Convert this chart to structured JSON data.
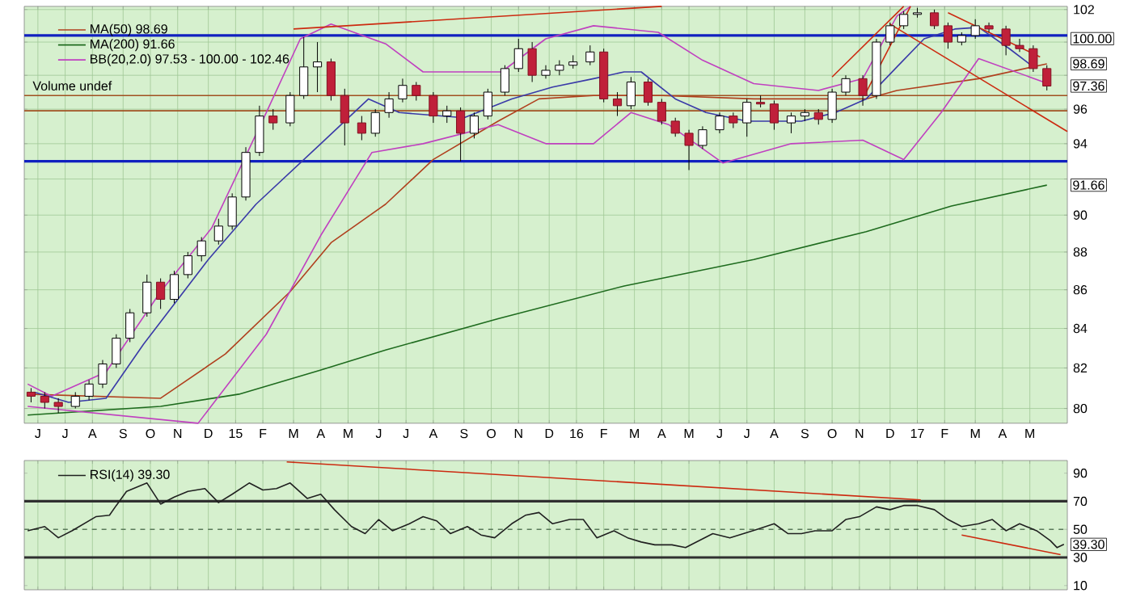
{
  "chart_data": [
    {
      "type": "candlestick",
      "log": "y",
      "grid": true,
      "legend": "top left",
      "marker": "none",
      "xlim": [
        2014.38,
        2017.44
      ],
      "ylim": [
        79.3,
        102.2
      ],
      "xticks": [
        {
          "value": 2014.42,
          "label": "J"
        },
        {
          "value": 2014.5,
          "label": "J"
        },
        {
          "value": 2014.58,
          "label": "A"
        },
        {
          "value": 2014.67,
          "label": "S"
        },
        {
          "value": 2014.75,
          "label": "O"
        },
        {
          "value": 2014.83,
          "label": "N"
        },
        {
          "value": 2014.92,
          "label": "D"
        },
        {
          "value": 2015,
          "label": "15"
        },
        {
          "value": 2015.08,
          "label": "F"
        },
        {
          "value": 2015.17,
          "label": "M"
        },
        {
          "value": 2015.25,
          "label": "A"
        },
        {
          "value": 2015.33,
          "label": "M"
        },
        {
          "value": 2015.42,
          "label": "J"
        },
        {
          "value": 2015.5,
          "label": "J"
        },
        {
          "value": 2015.58,
          "label": "A"
        },
        {
          "value": 2015.67,
          "label": "S"
        },
        {
          "value": 2015.75,
          "label": "O"
        },
        {
          "value": 2015.83,
          "label": "N"
        },
        {
          "value": 2015.92,
          "label": "D"
        },
        {
          "value": 2016,
          "label": "16"
        },
        {
          "value": 2016.08,
          "label": "F"
        },
        {
          "value": 2016.17,
          "label": "M"
        },
        {
          "value": 2016.25,
          "label": "A"
        },
        {
          "value": 2016.33,
          "label": "M"
        },
        {
          "value": 2016.42,
          "label": "J"
        },
        {
          "value": 2016.5,
          "label": "J"
        },
        {
          "value": 2016.58,
          "label": "A"
        },
        {
          "value": 2016.67,
          "label": "S"
        },
        {
          "value": 2016.75,
          "label": "O"
        },
        {
          "value": 2016.83,
          "label": "N"
        },
        {
          "value": 2016.92,
          "label": "D"
        },
        {
          "value": 2017,
          "label": "17"
        },
        {
          "value": 2017.08,
          "label": "F"
        },
        {
          "value": 2017.17,
          "label": "M"
        },
        {
          "value": 2017.25,
          "label": "A"
        },
        {
          "value": 2017.33,
          "label": "M"
        }
      ],
      "yticks": [
        80,
        82,
        84,
        86,
        88,
        90,
        {
          "value": 92,
          "label": null
        },
        94,
        96,
        {
          "value": 98,
          "label": null
        },
        {
          "value": 100,
          "label": null
        },
        102
      ],
      "x": [
        2014.4,
        2014.44,
        2014.48,
        2014.53,
        2014.57,
        2014.61,
        2014.65,
        2014.69,
        2014.74,
        2014.78,
        2014.82,
        2014.86,
        2014.9,
        2014.95,
        2014.99,
        2015.03,
        2015.07,
        2015.11,
        2015.16,
        2015.2,
        2015.24,
        2015.28,
        2015.32,
        2015.37,
        2015.41,
        2015.45,
        2015.49,
        2015.53,
        2015.58,
        2015.62,
        2015.66,
        2015.7,
        2015.74,
        2015.79,
        2015.83,
        2015.87,
        2015.91,
        2015.95,
        2015.99,
        2016.04,
        2016.08,
        2016.12,
        2016.16,
        2016.21,
        2016.25,
        2016.29,
        2016.33,
        2016.37,
        2016.42,
        2016.46,
        2016.5,
        2016.54,
        2016.58,
        2016.63,
        2016.67,
        2016.71,
        2016.75,
        2016.79,
        2016.84,
        2016.88,
        2016.92,
        2016.96,
        2017.0,
        2017.05,
        2017.09,
        2017.13,
        2017.17,
        2017.21,
        2017.26,
        2017.3,
        2017.34,
        2017.38
      ],
      "ohlc": [
        [
          80.8,
          81.0,
          80.3,
          80.6
        ],
        [
          80.6,
          80.8,
          80.0,
          80.3
        ],
        [
          80.3,
          80.5,
          79.8,
          80.1
        ],
        [
          80.1,
          80.8,
          80.0,
          80.6
        ],
        [
          80.6,
          81.4,
          80.4,
          81.2
        ],
        [
          81.2,
          82.4,
          81.0,
          82.2
        ],
        [
          82.2,
          83.7,
          82.0,
          83.5
        ],
        [
          83.5,
          85.0,
          83.3,
          84.8
        ],
        [
          84.8,
          86.8,
          84.6,
          86.4
        ],
        [
          86.4,
          86.6,
          85.0,
          85.5
        ],
        [
          85.5,
          87.0,
          85.3,
          86.8
        ],
        [
          86.8,
          88.0,
          86.6,
          87.8
        ],
        [
          87.8,
          88.8,
          87.5,
          88.6
        ],
        [
          88.6,
          89.8,
          88.4,
          89.4
        ],
        [
          89.4,
          91.2,
          89.2,
          91.0
        ],
        [
          91.0,
          93.8,
          90.8,
          93.5
        ],
        [
          93.5,
          96.2,
          93.3,
          95.6
        ],
        [
          95.6,
          96.0,
          94.8,
          95.2
        ],
        [
          95.2,
          97.0,
          95.0,
          96.8
        ],
        [
          96.8,
          100.3,
          96.6,
          98.5
        ],
        [
          98.5,
          100.0,
          97.0,
          98.8
        ],
        [
          98.8,
          99.0,
          96.5,
          96.8
        ],
        [
          96.8,
          97.2,
          93.9,
          95.2
        ],
        [
          95.2,
          95.6,
          94.2,
          94.6
        ],
        [
          94.6,
          96.0,
          94.4,
          95.8
        ],
        [
          95.8,
          97.0,
          95.5,
          96.6
        ],
        [
          96.6,
          97.8,
          96.4,
          97.4
        ],
        [
          97.4,
          97.6,
          96.5,
          96.8
        ],
        [
          96.8,
          97.0,
          95.2,
          95.6
        ],
        [
          95.6,
          96.2,
          95.2,
          95.9
        ],
        [
          95.9,
          96.1,
          93.0,
          94.6
        ],
        [
          94.6,
          95.8,
          94.3,
          95.6
        ],
        [
          95.6,
          97.2,
          95.4,
          97.0
        ],
        [
          97.0,
          98.6,
          96.8,
          98.4
        ],
        [
          98.4,
          100.2,
          98.2,
          99.6
        ],
        [
          99.6,
          100.0,
          97.6,
          98.0
        ],
        [
          98.0,
          98.6,
          97.8,
          98.3
        ],
        [
          98.3,
          98.9,
          98.0,
          98.6
        ],
        [
          98.6,
          99.2,
          98.4,
          98.8
        ],
        [
          98.8,
          99.8,
          98.6,
          99.4
        ],
        [
          99.4,
          99.6,
          96.4,
          96.6
        ],
        [
          96.6,
          97.0,
          95.6,
          96.2
        ],
        [
          96.2,
          97.9,
          96.0,
          97.6
        ],
        [
          97.6,
          97.8,
          96.2,
          96.4
        ],
        [
          96.4,
          96.6,
          95.1,
          95.3
        ],
        [
          95.3,
          95.5,
          94.4,
          94.6
        ],
        [
          94.6,
          94.8,
          92.5,
          93.9
        ],
        [
          93.9,
          95.0,
          93.7,
          94.8
        ],
        [
          94.8,
          95.8,
          94.6,
          95.6
        ],
        [
          95.6,
          95.8,
          94.9,
          95.2
        ],
        [
          95.2,
          96.6,
          94.4,
          96.4
        ],
        [
          96.4,
          96.8,
          96.1,
          96.3
        ],
        [
          96.3,
          96.5,
          94.8,
          95.2
        ],
        [
          95.2,
          95.8,
          94.6,
          95.6
        ],
        [
          95.6,
          96.0,
          95.3,
          95.8
        ],
        [
          95.8,
          96.0,
          95.1,
          95.4
        ],
        [
          95.4,
          97.2,
          95.2,
          97.0
        ],
        [
          97.0,
          98.0,
          96.8,
          97.8
        ],
        [
          97.8,
          98.0,
          96.2,
          96.8
        ],
        [
          96.8,
          100.2,
          96.6,
          100.0
        ],
        [
          100.0,
          101.2,
          99.8,
          101.0
        ],
        [
          101.0,
          101.9,
          100.8,
          101.7
        ],
        [
          101.7,
          102.1,
          101.5,
          101.8
        ],
        [
          101.8,
          102.0,
          100.8,
          101.0
        ],
        [
          101.0,
          101.2,
          99.6,
          100.0
        ],
        [
          100.0,
          100.6,
          99.8,
          100.4
        ],
        [
          100.4,
          101.4,
          100.2,
          101.0
        ],
        [
          101.0,
          101.2,
          100.6,
          100.8
        ],
        [
          100.8,
          101.0,
          99.2,
          99.8
        ],
        [
          99.8,
          100.2,
          99.4,
          99.6
        ],
        [
          99.6,
          99.8,
          98.2,
          98.4
        ],
        [
          98.4,
          98.6,
          97.1,
          97.36
        ]
      ],
      "series": [
        {
          "type": "line",
          "name": "MA(50) 98.69",
          "color": "#b0401e",
          "x": [
            2014.39,
            2014.78,
            2014.97,
            2015.16,
            2015.28,
            2015.44,
            2015.58,
            2015.77,
            2015.89,
            2016.05,
            2016.25,
            2016.52,
            2016.85,
            2016.94,
            2017.18,
            2017.38
          ],
          "values": [
            80.7,
            80.5,
            82.7,
            85.9,
            88.5,
            90.6,
            93.1,
            95.3,
            96.6,
            96.8,
            96.8,
            96.6,
            96.6,
            97.1,
            97.8,
            98.69
          ]
        },
        {
          "type": "line",
          "name": "MA(200) 91.66",
          "color": "#1e6b1e",
          "x": [
            2014.39,
            2014.78,
            2015.01,
            2015.25,
            2015.44,
            2015.77,
            2016.14,
            2016.52,
            2016.85,
            2017.1,
            2017.38
          ],
          "values": [
            79.7,
            80.1,
            80.7,
            81.9,
            82.9,
            84.5,
            86.2,
            87.6,
            89.1,
            90.5,
            91.66
          ]
        },
        {
          "type": "line",
          "name": "BB(20,2.0) 97.53 - 100.00 - 102.46",
          "color": "#c040c0",
          "x": [
            2014.39,
            2014.46,
            2014.62,
            2014.78,
            2014.93,
            2015.09,
            2015.19,
            2015.28,
            2015.44,
            2015.55,
            2015.78,
            2015.91,
            2016.05,
            2016.24,
            2016.37,
            2016.52,
            2016.71,
            2016.84,
            2016.94,
            2016.98
          ],
          "values": [
            81.2,
            80.6,
            81.8,
            85.9,
            89.3,
            95.8,
            100.2,
            101.1,
            99.9,
            98.2,
            98.2,
            100.2,
            101.0,
            100.6,
            98.9,
            97.5,
            97.1,
            97.8,
            101.6,
            102.2
          ]
        },
        {
          "type": "line",
          "color": "#c040c0",
          "x": [
            2014.39,
            2014.89,
            2015.09,
            2015.25,
            2015.4,
            2015.55,
            2015.77,
            2015.91,
            2016.05,
            2016.16,
            2016.27,
            2016.43,
            2016.63,
            2016.84,
            2016.96,
            2017.07,
            2017.18,
            2017.38
          ],
          "values": [
            80.1,
            79.3,
            83.7,
            88.9,
            93.5,
            94.0,
            95.1,
            94.0,
            94.0,
            95.8,
            95.1,
            92.9,
            94.0,
            94.2,
            93.1,
            95.8,
            99.0,
            97.53
          ]
        },
        {
          "type": "line",
          "color": "#3a3aa8",
          "x": [
            2014.41,
            2014.51,
            2014.62,
            2014.73,
            2014.92,
            2015.06,
            2015.25,
            2015.39,
            2015.48,
            2015.67,
            2015.81,
            2015.93,
            2016.05,
            2016.14,
            2016.19,
            2016.29,
            2016.38,
            2016.5,
            2016.66,
            2016.76,
            2016.85,
            2016.94,
            2017.02,
            2017.11,
            2017.18,
            2017.27,
            2017.34
          ],
          "values": [
            80.8,
            80.3,
            80.5,
            83.2,
            87.6,
            90.6,
            94.0,
            96.6,
            95.8,
            95.5,
            96.6,
            97.3,
            97.8,
            98.2,
            98.2,
            96.6,
            95.8,
            95.3,
            95.3,
            95.8,
            96.6,
            98.5,
            100.2,
            100.8,
            100.9,
            99.6,
            98.5
          ]
        },
        {
          "type": "line",
          "color": "#cc2a10",
          "x": [
            2015.17,
            2016.25
          ],
          "values": [
            100.8,
            102.2
          ]
        },
        {
          "type": "line",
          "color": "#cc2a10",
          "x": [
            2016.75,
            2016.96
          ],
          "values": [
            97.9,
            102.2
          ]
        },
        {
          "type": "line",
          "color": "#cc2a10",
          "x": [
            2016.85,
            2016.98
          ],
          "values": [
            97.0,
            102.2
          ]
        },
        {
          "type": "line",
          "color": "#cc2a10",
          "x": [
            2017.09,
            2017.36
          ],
          "values": [
            101.8,
            99.1
          ]
        },
        {
          "type": "line",
          "color": "#cc2a10",
          "x": [
            2016.92,
            2017.44
          ],
          "values": [
            101.1,
            94.7
          ]
        }
      ],
      "ref_lines": [
        {
          "axis": "y",
          "value": 100.4,
          "color": "#1020c0"
        },
        {
          "axis": "y",
          "value": 93.0,
          "color": "#1020c0"
        },
        {
          "axis": "y",
          "value": 96.8,
          "color": "#a05020"
        },
        {
          "axis": "y",
          "value": 95.9,
          "color": "#a05020"
        }
      ],
      "annotations": [
        "Volume undef",
        "100.00",
        {
          "text": "98.69",
          "y": 98.69
        },
        {
          "text": "97.36",
          "y": 97.36
        },
        {
          "text": "91.66",
          "y": 91.66
        }
      ]
    },
    {
      "type": "line",
      "grid": "x",
      "legend": "top left",
      "marker": "none",
      "tick_labels": "y",
      "xlim": [
        2014.38,
        2017.44
      ],
      "ylim": [
        7,
        99
      ],
      "xticks": [
        2014.42,
        2014.5,
        2014.58,
        2014.67,
        2014.75,
        2014.83,
        2014.92,
        2015,
        2015.08,
        2015.17,
        2015.25,
        2015.33,
        2015.42,
        2015.5,
        2015.58,
        2015.67,
        2015.75,
        2015.83,
        2015.92,
        2016,
        2016.08,
        2016.17,
        2016.25,
        2016.33,
        2016.42,
        2016.5,
        2016.58,
        2016.67,
        2016.75,
        2016.83,
        2016.92,
        2017,
        2017.08,
        2017.17,
        2017.25,
        2017.33
      ],
      "yticks": [
        10,
        30,
        50,
        70,
        90
      ],
      "series": [
        {
          "name": "RSI(14) 39.30",
          "color": "#202020",
          "x": [
            2014.39,
            2014.44,
            2014.48,
            2014.52,
            2014.59,
            2014.63,
            2014.65,
            2014.68,
            2014.74,
            2014.78,
            2014.82,
            2014.86,
            2014.91,
            2014.95,
            2014.99,
            2015.04,
            2015.08,
            2015.12,
            2015.16,
            2015.21,
            2015.25,
            2015.29,
            2015.34,
            2015.38,
            2015.42,
            2015.46,
            2015.51,
            2015.55,
            2015.59,
            2015.63,
            2015.68,
            2015.72,
            2015.76,
            2015.81,
            2015.85,
            2015.89,
            2015.93,
            2015.98,
            2016.02,
            2016.06,
            2016.11,
            2016.15,
            2016.19,
            2016.23,
            2016.28,
            2016.32,
            2016.36,
            2016.4,
            2016.45,
            2016.49,
            2016.53,
            2016.58,
            2016.62,
            2016.66,
            2016.7,
            2016.75,
            2016.79,
            2016.83,
            2016.88,
            2016.92,
            2016.96,
            2017.0,
            2017.05,
            2017.09,
            2017.13,
            2017.18,
            2017.22,
            2017.26,
            2017.3,
            2017.35,
            2017.39,
            2017.41,
            2017.43
          ],
          "values": [
            49,
            52,
            44,
            49,
            59,
            60,
            67,
            77,
            83,
            68,
            73,
            77,
            79,
            69,
            75,
            83,
            78,
            79,
            83,
            72,
            75,
            64,
            52,
            47,
            57,
            49,
            54,
            59,
            56,
            47,
            52,
            46,
            44,
            54,
            60,
            62,
            54,
            57,
            57,
            44,
            49,
            44,
            41,
            39,
            39,
            37,
            42,
            47,
            44,
            47,
            50,
            54,
            47,
            47,
            49,
            49,
            57,
            59,
            66,
            64,
            67,
            67,
            64,
            57,
            52,
            54,
            57,
            49,
            54,
            49,
            42,
            37,
            39.3
          ]
        },
        {
          "color": "#cc2a10",
          "x": [
            2015.15,
            2017.01
          ],
          "values": [
            98,
            71
          ]
        },
        {
          "color": "#cc2a10",
          "x": [
            2017.13,
            2017.42
          ],
          "values": [
            46,
            32
          ]
        }
      ],
      "ref_lines": [
        {
          "axis": "y",
          "value": 70,
          "color": "#303030"
        },
        {
          "axis": "y",
          "value": 50,
          "color": "#5a7a5a",
          "line_style": "dashed"
        },
        {
          "axis": "y",
          "value": 30,
          "color": "#303030"
        }
      ],
      "annotations": [
        {
          "text": "39.30",
          "y": 39.3
        }
      ]
    }
  ]
}
